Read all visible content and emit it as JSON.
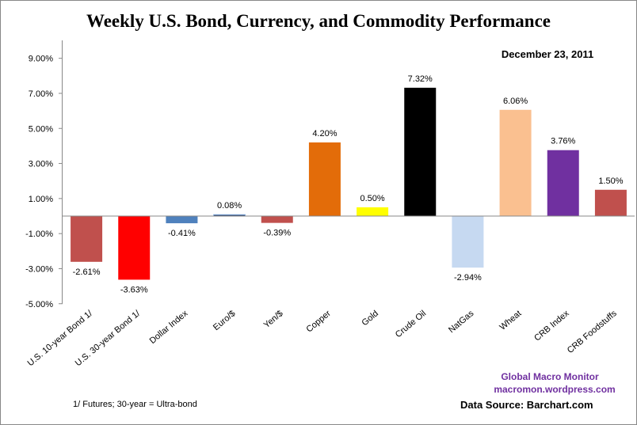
{
  "chart_data": {
    "type": "bar",
    "title": "Weekly U.S. Bond, Currency, and Commodity Performance",
    "date": "December 23, 2011",
    "categories": [
      "U.S. 10-year Bond 1/",
      "U.S. 30-year Bond 1/",
      "Dollar Index",
      "Euro/$",
      "Yen/$",
      "Copper",
      "Gold",
      "Crude Oil",
      "NatGas",
      "Wheat",
      "CRB Index",
      "CRB Foodstuffs"
    ],
    "values": [
      -2.61,
      -3.63,
      -0.41,
      0.08,
      -0.39,
      4.2,
      0.5,
      7.32,
      -2.94,
      6.06,
      3.76,
      1.5
    ],
    "data_labels": [
      "-2.61%",
      "-3.63%",
      "-0.41%",
      "0.08%",
      "-0.39%",
      "4.20%",
      "0.50%",
      "7.32%",
      "-2.94%",
      "6.06%",
      "3.76%",
      "1.50%"
    ],
    "colors": [
      "#C0504D",
      "#FF0000",
      "#4F81BD",
      "#1F3864",
      "#C0504D",
      "#E36C09",
      "#FFFF00",
      "#000000",
      "#C6D9F1",
      "#FAC090",
      "#7030A0",
      "#C0504D"
    ],
    "ylim": [
      -5,
      10
    ],
    "yticks": [
      9,
      7,
      5,
      3,
      1,
      -1,
      -3,
      -5
    ],
    "ytick_labels": [
      "9.00%",
      "7.00%",
      "5.00%",
      "3.00%",
      "1.00%",
      "-1.00%",
      "-3.00%",
      "-5.00%"
    ],
    "xlabel": "",
    "ylabel": "",
    "grid": false,
    "legend": "none"
  },
  "footnote": "1/  Futures; 30-year = Ultra-bond",
  "brand": {
    "name": "Global Macro Monitor",
    "site": "macromon.wordpress.com"
  },
  "source": "Data Source:  Barchart.com"
}
